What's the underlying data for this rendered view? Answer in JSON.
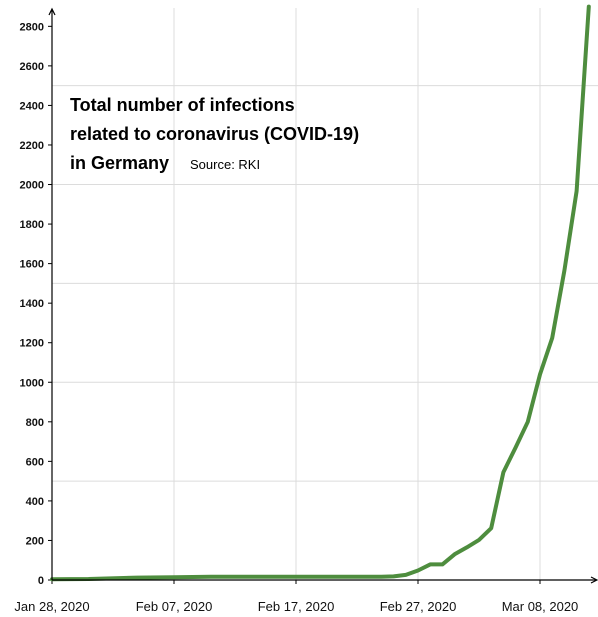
{
  "chart_data": {
    "type": "line",
    "title_lines": [
      "Total number of infections",
      "related to coronavirus (COVID-19)",
      "in Germany"
    ],
    "source": "Source: RKI",
    "xlabel": "",
    "ylabel": "",
    "x_ticks": [
      "Jan 28, 2020",
      "Feb 07, 2020",
      "Feb 17, 2020",
      "Feb 27, 2020",
      "Mar 08, 2020"
    ],
    "y_ticks": [
      0,
      200,
      400,
      600,
      800,
      1000,
      1200,
      1400,
      1600,
      1800,
      2000,
      2200,
      2400,
      2600,
      2800
    ],
    "ylim": [
      0,
      2900
    ],
    "grid": true,
    "colors": {
      "line": "#4e8d3e",
      "grid": "#dcdcdc",
      "axis": "#000000"
    },
    "series": [
      {
        "x": [
          "2020-01-28",
          "2020-01-31",
          "2020-02-04",
          "2020-02-07",
          "2020-02-10",
          "2020-02-14",
          "2020-02-17",
          "2020-02-21",
          "2020-02-24",
          "2020-02-25",
          "2020-02-26",
          "2020-02-27",
          "2020-02-28",
          "2020-02-29",
          "2020-03-01",
          "2020-03-02",
          "2020-03-03",
          "2020-03-04",
          "2020-03-05",
          "2020-03-06",
          "2020-03-07",
          "2020-03-08",
          "2020-03-09",
          "2020-03-10",
          "2020-03-11"
        ],
        "values": [
          4,
          5,
          12,
          14,
          16,
          16,
          16,
          16,
          16,
          18,
          26,
          48,
          79,
          79,
          130,
          165,
          203,
          262,
          545,
          670,
          800,
          1040,
          1224,
          1565,
          1966
        ]
      }
    ],
    "end_trend": {
      "x": "2020-03-12",
      "value": 2900
    }
  }
}
